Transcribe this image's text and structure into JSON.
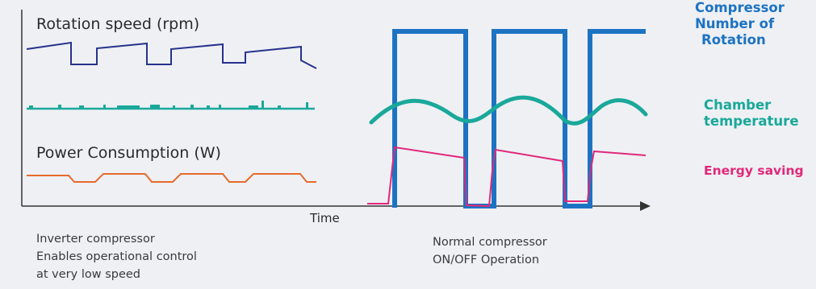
{
  "labels": {
    "rotation_speed": "Rotation speed (rpm)",
    "power_consumption": "Power Consumption (W)",
    "time_axis": "Time"
  },
  "captions": {
    "inverter": [
      "Inverter compressor",
      "Enables operational control",
      "at very low speed"
    ],
    "normal": [
      "Normal compressor",
      "ON/OFF Operation"
    ]
  },
  "legend": {
    "compressor_rotation": [
      "Compressor",
      "Number of",
      "Rotation"
    ],
    "chamber_temperature": [
      "Chamber",
      "temperature"
    ],
    "energy_saving": "Energy saving"
  },
  "colors": {
    "rotation": "#27328c",
    "chamber": "#1aa89a",
    "power": "#e86a2c",
    "compressor": "#1d73c2",
    "energy": "#e1287a",
    "axis": "#333333"
  }
}
